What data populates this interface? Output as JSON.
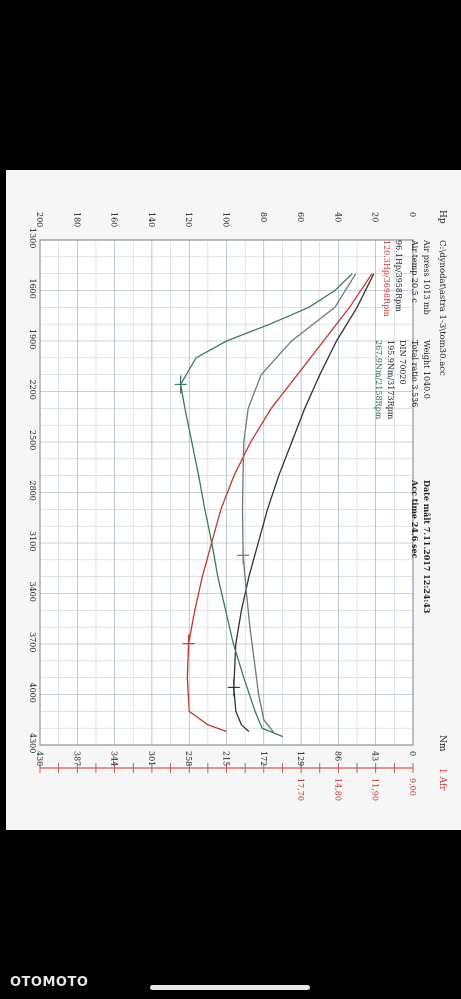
{
  "header": {
    "file_path": "C:\\dynodat\\astra 1-3\\tom30.acc",
    "air_press": "Air press 1013 mb",
    "air_temp": "Air temp 20.5 c",
    "weight": "Weight 1040.0",
    "total_ratio": "Total ratio 3.536",
    "din": "DIN 70020",
    "date": "Date mâlt 7.11.2017 12:24:43",
    "acc_time": "Acc time 24.6 sec",
    "power_gray": "96.1Hp/3958Rpm",
    "power_red": "120.3Hp/3698Rpm",
    "torque_gray": "195.9Nm/3173Rpm",
    "torque_green": "267.9Nm/2158Rpm"
  },
  "axes": {
    "hp_label": "Hp",
    "nm_label": "Nm",
    "afr_label": "1 Afr",
    "hp_ticks": [
      "200",
      "180",
      "160",
      "140",
      "120",
      "100",
      "80",
      "60",
      "40",
      "20",
      "0"
    ],
    "nm_ticks": [
      "430",
      "387",
      "344",
      "301",
      "258",
      "215",
      "172",
      "129",
      "86",
      "43",
      "0"
    ],
    "afr_ticks": [
      "17,70",
      "14,80",
      "11,90",
      "9,00"
    ],
    "rpm_ticks": [
      "1300",
      "1600",
      "1900",
      "2200",
      "2500",
      "2800",
      "3100",
      "3400",
      "3700",
      "4000",
      "4300"
    ]
  },
  "chart_data": {
    "type": "line",
    "xlabel": "",
    "ylabel": "Hp",
    "y2label": "Nm",
    "xlim": [
      1300,
      4300
    ],
    "ylim": [
      0,
      200
    ],
    "y2lim": [
      0,
      430
    ],
    "grid": true,
    "series": [
      {
        "axis": "hp",
        "color": "#c0392b",
        "points": [
          [
            1500,
            22
          ],
          [
            1700,
            34
          ],
          [
            1900,
            48
          ],
          [
            2100,
            62
          ],
          [
            2300,
            76
          ],
          [
            2500,
            87
          ],
          [
            2700,
            96
          ],
          [
            2900,
            103
          ],
          [
            3100,
            108
          ],
          [
            3300,
            113
          ],
          [
            3500,
            117
          ],
          [
            3698,
            120.3
          ],
          [
            3900,
            121
          ],
          [
            4100,
            120
          ],
          [
            4180,
            110
          ],
          [
            4220,
            100
          ]
        ]
      },
      {
        "axis": "hp",
        "color": "#333333",
        "points": [
          [
            1500,
            21
          ],
          [
            1700,
            30
          ],
          [
            1900,
            41
          ],
          [
            2100,
            50
          ],
          [
            2300,
            58
          ],
          [
            2500,
            65
          ],
          [
            2700,
            72
          ],
          [
            2900,
            78
          ],
          [
            3100,
            83
          ],
          [
            3300,
            88
          ],
          [
            3500,
            92
          ],
          [
            3700,
            95
          ],
          [
            3958,
            96.1
          ],
          [
            4100,
            95
          ],
          [
            4180,
            92
          ],
          [
            4220,
            88
          ]
        ]
      },
      {
        "axis": "nm",
        "color": "#3c7a5a",
        "points": [
          [
            1500,
            70
          ],
          [
            1600,
            90
          ],
          [
            1700,
            120
          ],
          [
            1800,
            165
          ],
          [
            1900,
            215
          ],
          [
            2000,
            250
          ],
          [
            2158,
            267.9
          ],
          [
            2300,
            263
          ],
          [
            2500,
            255
          ],
          [
            2700,
            247
          ],
          [
            2900,
            240
          ],
          [
            3100,
            232
          ],
          [
            3300,
            225
          ],
          [
            3500,
            216
          ],
          [
            3700,
            207
          ],
          [
            3900,
            195
          ],
          [
            4100,
            182
          ],
          [
            4200,
            174
          ],
          [
            4250,
            150
          ]
        ]
      },
      {
        "axis": "nm",
        "color": "#6e7c74",
        "points": [
          [
            1500,
            66
          ],
          [
            1700,
            90
          ],
          [
            1900,
            140
          ],
          [
            2100,
            175
          ],
          [
            2300,
            190
          ],
          [
            2500,
            195
          ],
          [
            2700,
            196
          ],
          [
            2900,
            196.5
          ],
          [
            3173,
            195.9
          ],
          [
            3400,
            192
          ],
          [
            3600,
            188
          ],
          [
            3800,
            183
          ],
          [
            4000,
            178
          ],
          [
            4150,
            172
          ],
          [
            4230,
            160
          ]
        ]
      }
    ],
    "markers": [
      {
        "series": 0,
        "rpm": 3698
      },
      {
        "series": 1,
        "rpm": 3958
      },
      {
        "series": 2,
        "rpm": 2158
      },
      {
        "series": 3,
        "rpm": 3173
      }
    ]
  }
}
